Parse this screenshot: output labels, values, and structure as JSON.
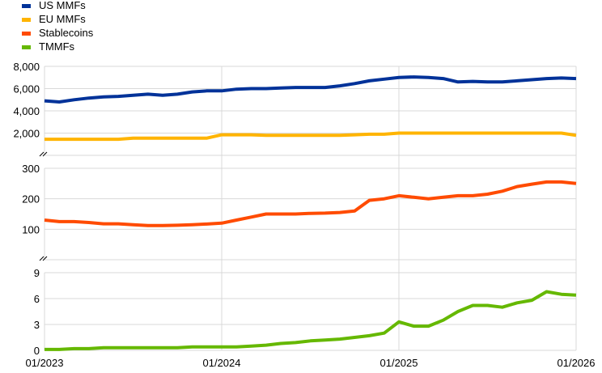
{
  "chart_data": [
    {
      "type": "line",
      "panel": "top",
      "ylim": [
        0,
        8000
      ],
      "yticks": [
        "8,000",
        "6,000",
        "4,000",
        "2,000"
      ],
      "axis_break": true,
      "grid": true,
      "series": [
        {
          "name": "US MMFs",
          "color": "#003299",
          "values": [
            4900,
            4800,
            5000,
            5150,
            5250,
            5300,
            5400,
            5500,
            5400,
            5500,
            5700,
            5800,
            5800,
            5950,
            6000,
            6000,
            6050,
            6100,
            6100,
            6100,
            6250,
            6450,
            6700,
            6850,
            7000,
            7050,
            7000,
            6900,
            6600,
            6650,
            6600,
            6600,
            6700,
            6800,
            6900,
            6950,
            6900
          ]
        },
        {
          "name": "EU MMFs",
          "color": "#FFB400",
          "values": [
            1450,
            1450,
            1450,
            1450,
            1450,
            1450,
            1550,
            1550,
            1550,
            1550,
            1550,
            1550,
            1850,
            1850,
            1850,
            1800,
            1800,
            1800,
            1800,
            1800,
            1800,
            1850,
            1900,
            1900,
            2000,
            2000,
            2000,
            2000,
            2000,
            2000,
            2000,
            2000,
            2000,
            2000,
            2000,
            2000,
            1800
          ]
        }
      ]
    },
    {
      "type": "line",
      "panel": "middle",
      "ylim": [
        0,
        300
      ],
      "yticks": [
        "300",
        "200",
        "100"
      ],
      "axis_break": true,
      "grid": true,
      "series": [
        {
          "name": "Stablecoins",
          "color": "#FF4B00",
          "values": [
            130,
            125,
            125,
            122,
            118,
            118,
            115,
            112,
            112,
            113,
            115,
            117,
            120,
            130,
            140,
            150,
            150,
            150,
            152,
            153,
            155,
            160,
            195,
            200,
            210,
            205,
            200,
            205,
            210,
            210,
            215,
            225,
            240,
            248,
            255,
            255,
            250
          ]
        }
      ]
    },
    {
      "type": "line",
      "panel": "bottom",
      "ylim": [
        0,
        9
      ],
      "yticks": [
        "9",
        "6",
        "3",
        "0"
      ],
      "grid": true,
      "series": [
        {
          "name": "TMMFs",
          "color": "#65B800",
          "values": [
            0.1,
            0.1,
            0.2,
            0.2,
            0.3,
            0.3,
            0.3,
            0.3,
            0.3,
            0.3,
            0.4,
            0.4,
            0.4,
            0.4,
            0.5,
            0.6,
            0.8,
            0.9,
            1.1,
            1.2,
            1.3,
            1.5,
            1.7,
            2.0,
            3.3,
            2.8,
            2.8,
            3.5,
            4.5,
            5.2,
            5.2,
            5.0,
            5.5,
            5.8,
            6.8,
            6.5,
            6.4
          ]
        }
      ]
    }
  ],
  "x_axis": {
    "start": "01/2023",
    "end": "01/2026",
    "ticks": [
      "01/2023",
      "01/2024",
      "01/2025",
      "01/2026"
    ]
  },
  "legend": {
    "placement": "top-left",
    "items": [
      "US MMFs",
      "EU MMFs",
      "Stablecoins",
      "TMMFs"
    ]
  }
}
